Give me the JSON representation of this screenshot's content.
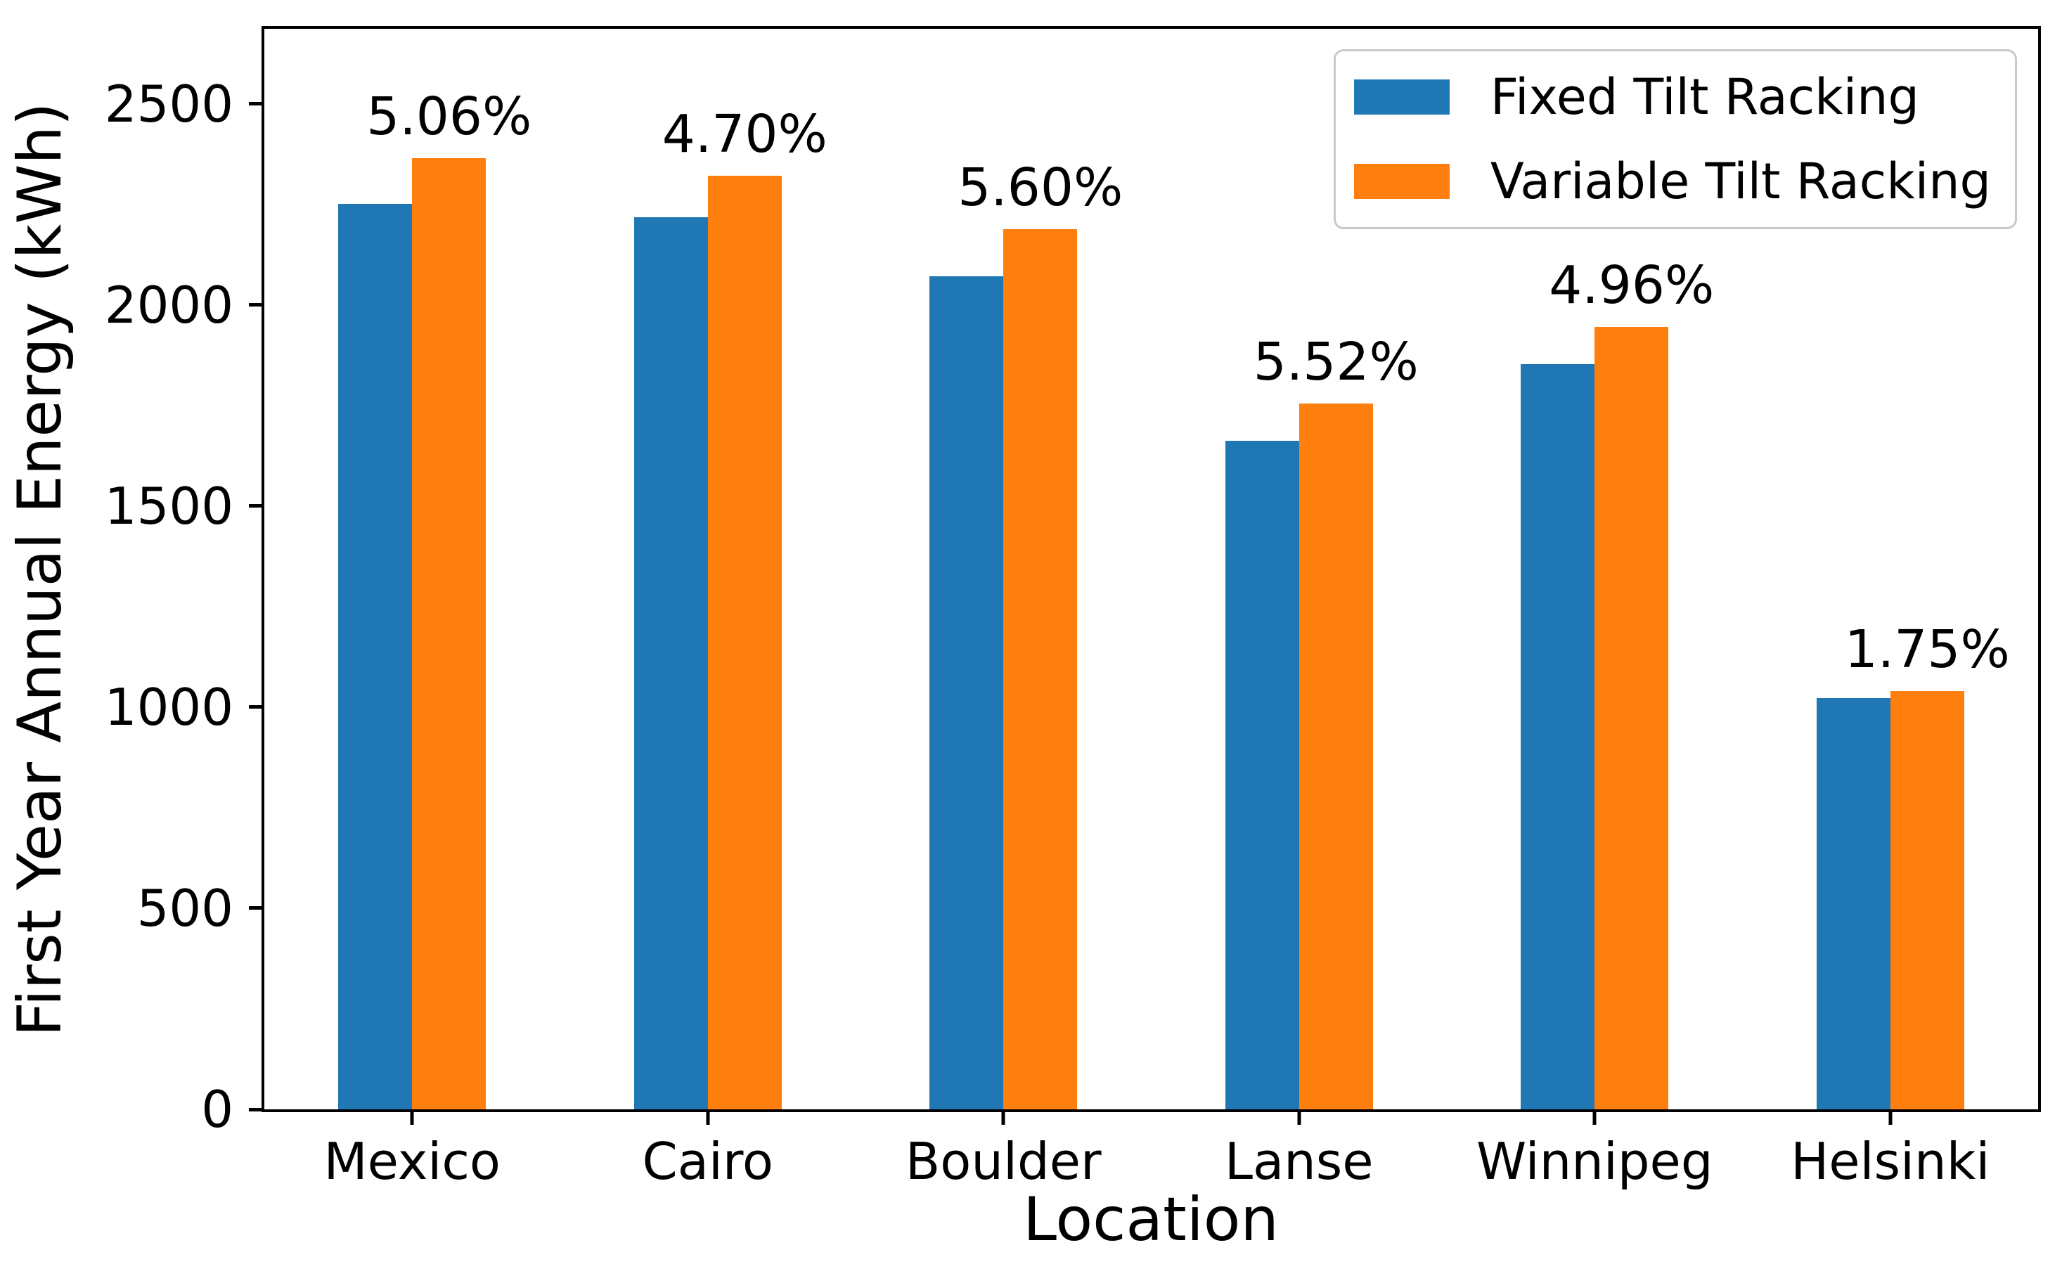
{
  "chart_data": {
    "type": "bar",
    "title": "",
    "xlabel": "Location",
    "ylabel": "First Year Annual Energy (kWh)",
    "categories": [
      "Mexico",
      "Cairo",
      "Boulder",
      "Lanse",
      "Winnipeg",
      "Helsinki"
    ],
    "series": [
      {
        "name": "Fixed Tilt Racking",
        "color": "#1f77b4",
        "values": [
          2252,
          2218,
          2072,
          1663,
          1854,
          1023
        ]
      },
      {
        "name": "Variable Tilt Racking",
        "color": "#ff7f0e",
        "values": [
          2366,
          2322,
          2188,
          1755,
          1946,
          1041
        ]
      }
    ],
    "bar_annotations": [
      "5.06%",
      "4.70%",
      "5.60%",
      "5.52%",
      "4.96%",
      "1.75%"
    ],
    "yticks": [
      0,
      500,
      1000,
      1500,
      2000,
      2500
    ],
    "ylim": [
      0,
      2687
    ],
    "grid": false,
    "legend_position": "upper right",
    "axis_color": "#000000",
    "background_color": "#ffffff"
  }
}
